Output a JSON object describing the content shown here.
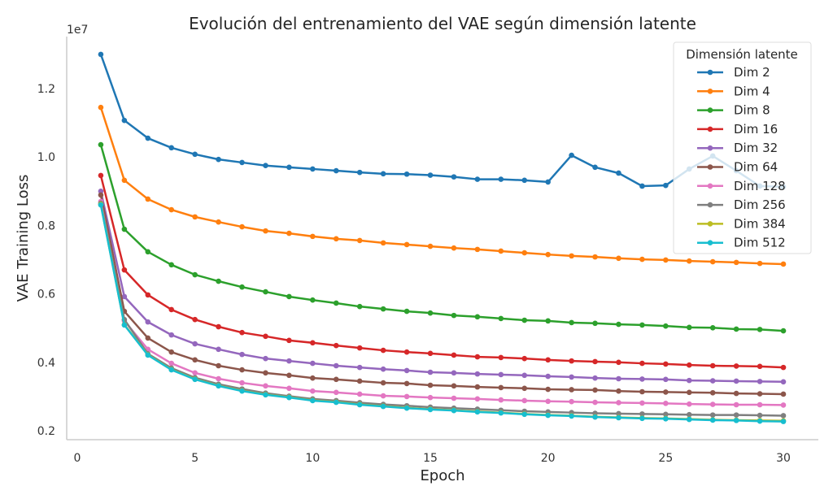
{
  "chart_data": {
    "type": "line",
    "title": "Evolución del entrenamiento del VAE según dimensión latente",
    "xlabel": "Epoch",
    "ylabel": "VAE Training Loss",
    "y_offset_text": "1e7",
    "xlim": [
      0,
      30
    ],
    "ylim": [
      0.2,
      1.3
    ],
    "xticks": [
      0,
      5,
      10,
      15,
      20,
      25,
      30
    ],
    "yticks": [
      "0.2",
      "0.4",
      "0.6",
      "0.8",
      "1.0",
      "1.2"
    ],
    "legend_title": "Dimensión latente",
    "legend_placement": "top-right",
    "grid": false,
    "x": [
      1,
      2,
      3,
      4,
      5,
      6,
      7,
      8,
      9,
      10,
      11,
      12,
      13,
      14,
      15,
      16,
      17,
      18,
      19,
      20,
      21,
      22,
      23,
      24,
      25,
      26,
      27,
      28,
      29,
      30
    ],
    "series": [
      {
        "name": "Dim 2",
        "color": "#1f77b4",
        "values": [
          1.3,
          1.107,
          1.055,
          1.027,
          1.008,
          0.993,
          0.984,
          0.975,
          0.97,
          0.965,
          0.96,
          0.955,
          0.951,
          0.95,
          0.947,
          0.942,
          0.935,
          0.935,
          0.932,
          0.927,
          1.005,
          0.97,
          0.953,
          0.915,
          0.917,
          0.965,
          1.003,
          0.96,
          0.915,
          0.913
        ]
      },
      {
        "name": "Dim 4",
        "color": "#ff7f0e",
        "values": [
          1.145,
          0.932,
          0.877,
          0.846,
          0.825,
          0.81,
          0.796,
          0.784,
          0.777,
          0.768,
          0.761,
          0.756,
          0.749,
          0.744,
          0.739,
          0.734,
          0.73,
          0.725,
          0.72,
          0.715,
          0.711,
          0.708,
          0.704,
          0.701,
          0.699,
          0.696,
          0.694,
          0.692,
          0.689,
          0.687
        ]
      },
      {
        "name": "Dim 8",
        "color": "#2ca02c",
        "values": [
          1.036,
          0.789,
          0.723,
          0.685,
          0.656,
          0.637,
          0.62,
          0.606,
          0.592,
          0.582,
          0.573,
          0.563,
          0.556,
          0.549,
          0.544,
          0.537,
          0.533,
          0.528,
          0.523,
          0.521,
          0.516,
          0.514,
          0.511,
          0.509,
          0.506,
          0.502,
          0.501,
          0.497,
          0.496,
          0.492
        ]
      },
      {
        "name": "Dim 16",
        "color": "#d62728",
        "values": [
          0.946,
          0.67,
          0.597,
          0.554,
          0.525,
          0.504,
          0.487,
          0.476,
          0.464,
          0.457,
          0.449,
          0.442,
          0.435,
          0.43,
          0.426,
          0.421,
          0.416,
          0.414,
          0.411,
          0.407,
          0.404,
          0.402,
          0.4,
          0.397,
          0.395,
          0.392,
          0.39,
          0.389,
          0.388,
          0.385
        ]
      },
      {
        "name": "Dim 32",
        "color": "#9467bd",
        "values": [
          0.9,
          0.592,
          0.518,
          0.48,
          0.454,
          0.438,
          0.423,
          0.411,
          0.404,
          0.397,
          0.39,
          0.385,
          0.38,
          0.376,
          0.371,
          0.369,
          0.366,
          0.364,
          0.362,
          0.359,
          0.357,
          0.354,
          0.352,
          0.351,
          0.35,
          0.347,
          0.346,
          0.345,
          0.344,
          0.343
        ]
      },
      {
        "name": "Dim 64",
        "color": "#8c564b",
        "values": [
          0.889,
          0.549,
          0.471,
          0.43,
          0.407,
          0.39,
          0.378,
          0.369,
          0.362,
          0.354,
          0.35,
          0.345,
          0.34,
          0.338,
          0.333,
          0.331,
          0.328,
          0.326,
          0.324,
          0.321,
          0.32,
          0.319,
          0.316,
          0.314,
          0.313,
          0.312,
          0.311,
          0.309,
          0.308,
          0.307
        ]
      },
      {
        "name": "Dim 128",
        "color": "#e377c2",
        "values": [
          0.87,
          0.521,
          0.438,
          0.397,
          0.369,
          0.352,
          0.34,
          0.331,
          0.324,
          0.316,
          0.312,
          0.307,
          0.302,
          0.3,
          0.297,
          0.295,
          0.293,
          0.29,
          0.288,
          0.286,
          0.285,
          0.283,
          0.282,
          0.281,
          0.28,
          0.278,
          0.277,
          0.276,
          0.276,
          0.275
        ]
      },
      {
        "name": "Dim 256",
        "color": "#7f7f7f",
        "values": [
          0.865,
          0.525,
          0.425,
          0.383,
          0.355,
          0.336,
          0.322,
          0.31,
          0.301,
          0.293,
          0.288,
          0.282,
          0.277,
          0.273,
          0.269,
          0.266,
          0.263,
          0.26,
          0.257,
          0.255,
          0.253,
          0.251,
          0.25,
          0.249,
          0.248,
          0.247,
          0.246,
          0.246,
          0.245,
          0.244
        ]
      },
      {
        "name": "Dim 384",
        "color": "#bcbd22",
        "values": [
          0.862,
          0.51,
          0.422,
          0.379,
          0.351,
          0.332,
          0.317,
          0.306,
          0.298,
          0.289,
          0.284,
          0.277,
          0.272,
          0.267,
          0.263,
          0.26,
          0.256,
          0.253,
          0.249,
          0.246,
          0.244,
          0.241,
          0.239,
          0.237,
          0.236,
          0.234,
          0.232,
          0.231,
          0.23,
          0.229
        ]
      },
      {
        "name": "Dim 512",
        "color": "#17becf",
        "values": [
          0.86,
          0.509,
          0.421,
          0.378,
          0.35,
          0.331,
          0.316,
          0.305,
          0.297,
          0.288,
          0.283,
          0.276,
          0.271,
          0.266,
          0.262,
          0.259,
          0.255,
          0.252,
          0.248,
          0.245,
          0.243,
          0.24,
          0.238,
          0.236,
          0.235,
          0.233,
          0.231,
          0.23,
          0.228,
          0.227
        ]
      }
    ]
  }
}
